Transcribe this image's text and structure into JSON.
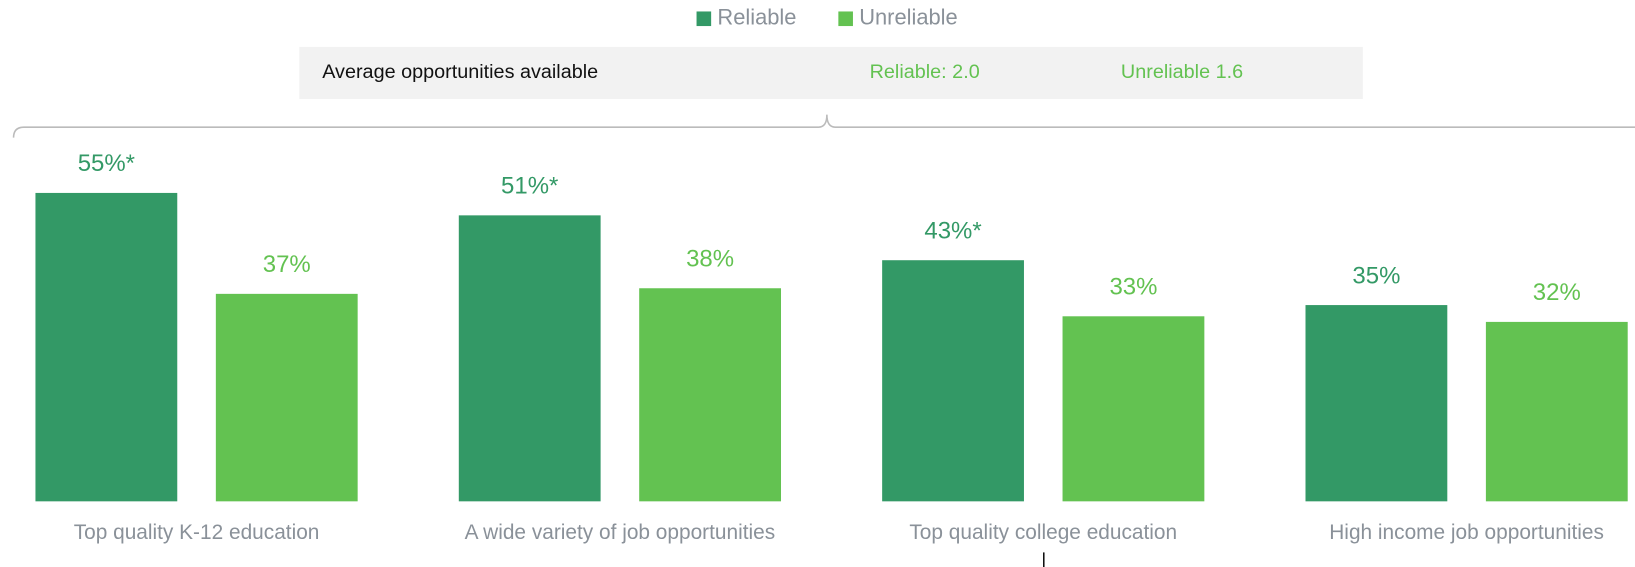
{
  "chart_data": {
    "type": "bar",
    "annotations": [
      "Average opportunities available",
      "Reliable: 2.0",
      "Unreliable 1.6"
    ],
    "categories": [
      "Top quality K-12 education",
      "A wide variety of job opportunities",
      "Top quality college education",
      "High income job opportunities"
    ],
    "series": [
      {
        "name": "Reliable",
        "color": "#339966",
        "values": [
          55,
          51,
          43,
          35
        ],
        "value_labels": [
          "55%*",
          "51%*",
          "43%*",
          "35%"
        ]
      },
      {
        "name": "Unreliable",
        "color": "#63c251",
        "values": [
          37,
          38,
          33,
          32
        ],
        "value_labels": [
          "37%",
          "38%",
          "33%",
          "32%"
        ]
      }
    ]
  }
}
